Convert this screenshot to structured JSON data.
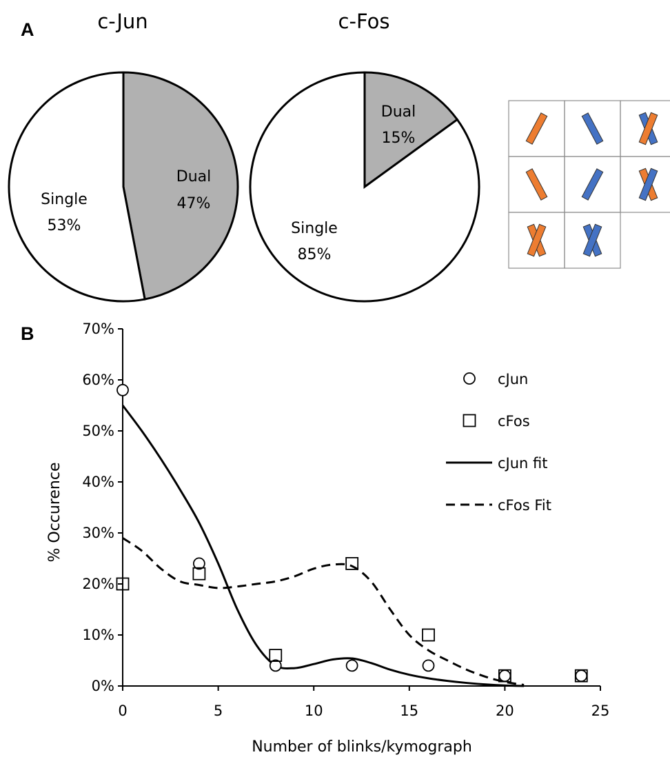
{
  "colors": {
    "slice_dual": "#b1b1b1",
    "slice_single": "#ffffff",
    "stroke": "#000000",
    "orange": "#ed7d31",
    "blue": "#4472c4",
    "grid_line": "#8c8c8c"
  },
  "panels": {
    "a_label": "A",
    "b_label": "B"
  },
  "chart_data": [
    {
      "type": "pie",
      "title": "c-Jun",
      "slices": [
        {
          "label": "Dual",
          "value": 47,
          "value_label": "47%",
          "color": "#b1b1b1"
        },
        {
          "label": "Single",
          "value": 53,
          "value_label": "53%",
          "color": "#ffffff"
        }
      ]
    },
    {
      "type": "pie",
      "title": "c-Fos",
      "slices": [
        {
          "label": "Dual",
          "value": 15,
          "value_label": "15%",
          "color": "#b1b1b1"
        },
        {
          "label": "Single",
          "value": 85,
          "value_label": "85%",
          "color": "#ffffff"
        }
      ]
    },
    {
      "type": "scatter",
      "xlabel": "Number of blinks/kymograph",
      "ylabel": "% Occurence",
      "xlim": [
        0,
        25
      ],
      "ylim": [
        0,
        70
      ],
      "x_ticks": [
        0,
        5,
        10,
        15,
        20,
        25
      ],
      "x_tick_labels": [
        "0",
        "5",
        "10",
        "15",
        "20",
        "25"
      ],
      "y_ticks": [
        0,
        10,
        20,
        30,
        40,
        50,
        60,
        70
      ],
      "y_tick_labels": [
        "0%",
        "10%",
        "20%",
        "30%",
        "40%",
        "50%",
        "60%",
        "70%"
      ],
      "grid": false,
      "legend_position": "top-right",
      "series": [
        {
          "name": "cJun",
          "marker": "circle",
          "x": [
            0,
            4,
            8,
            12,
            16,
            20,
            24
          ],
          "y": [
            58,
            24,
            4,
            4,
            4,
            2,
            2
          ]
        },
        {
          "name": "cFos",
          "marker": "square",
          "x": [
            0,
            4,
            8,
            12,
            16,
            20,
            24
          ],
          "y": [
            20,
            22,
            6,
            24,
            10,
            2,
            2
          ]
        },
        {
          "name": "cJun fit",
          "line": "solid",
          "x": [
            0,
            1,
            2,
            3,
            4,
            5,
            6,
            7,
            8,
            9,
            10,
            11,
            12,
            13,
            14,
            15,
            16,
            17,
            18,
            19,
            20,
            21
          ],
          "y": [
            55,
            50,
            44.5,
            38.5,
            32,
            24,
            15,
            8,
            4,
            3.5,
            4.3,
            5.2,
            5.4,
            4.5,
            3.2,
            2.2,
            1.5,
            1.0,
            0.6,
            0.3,
            0.1,
            0
          ]
        },
        {
          "name": "cFos Fit",
          "line": "dashed",
          "x": [
            0,
            1,
            2,
            3,
            4,
            5,
            6,
            7,
            8,
            9,
            10,
            11,
            12,
            13,
            14,
            15,
            16,
            17,
            18,
            19,
            20,
            21
          ],
          "y": [
            29,
            26.5,
            23,
            20.5,
            19.8,
            19.2,
            19.5,
            20,
            20.5,
            21.5,
            23,
            23.8,
            23.5,
            20.5,
            15,
            10,
            7,
            5,
            3.2,
            1.8,
            0.8,
            0.2
          ]
        }
      ]
    }
  ],
  "orientation_grid": {
    "cells": [
      [
        "orange-right",
        "blue-left",
        "cross-blue-orange"
      ],
      [
        "orange-left",
        "blue-right",
        "cross-orange-blue"
      ],
      [
        "cross-orange",
        "cross-blue",
        "empty"
      ]
    ]
  }
}
